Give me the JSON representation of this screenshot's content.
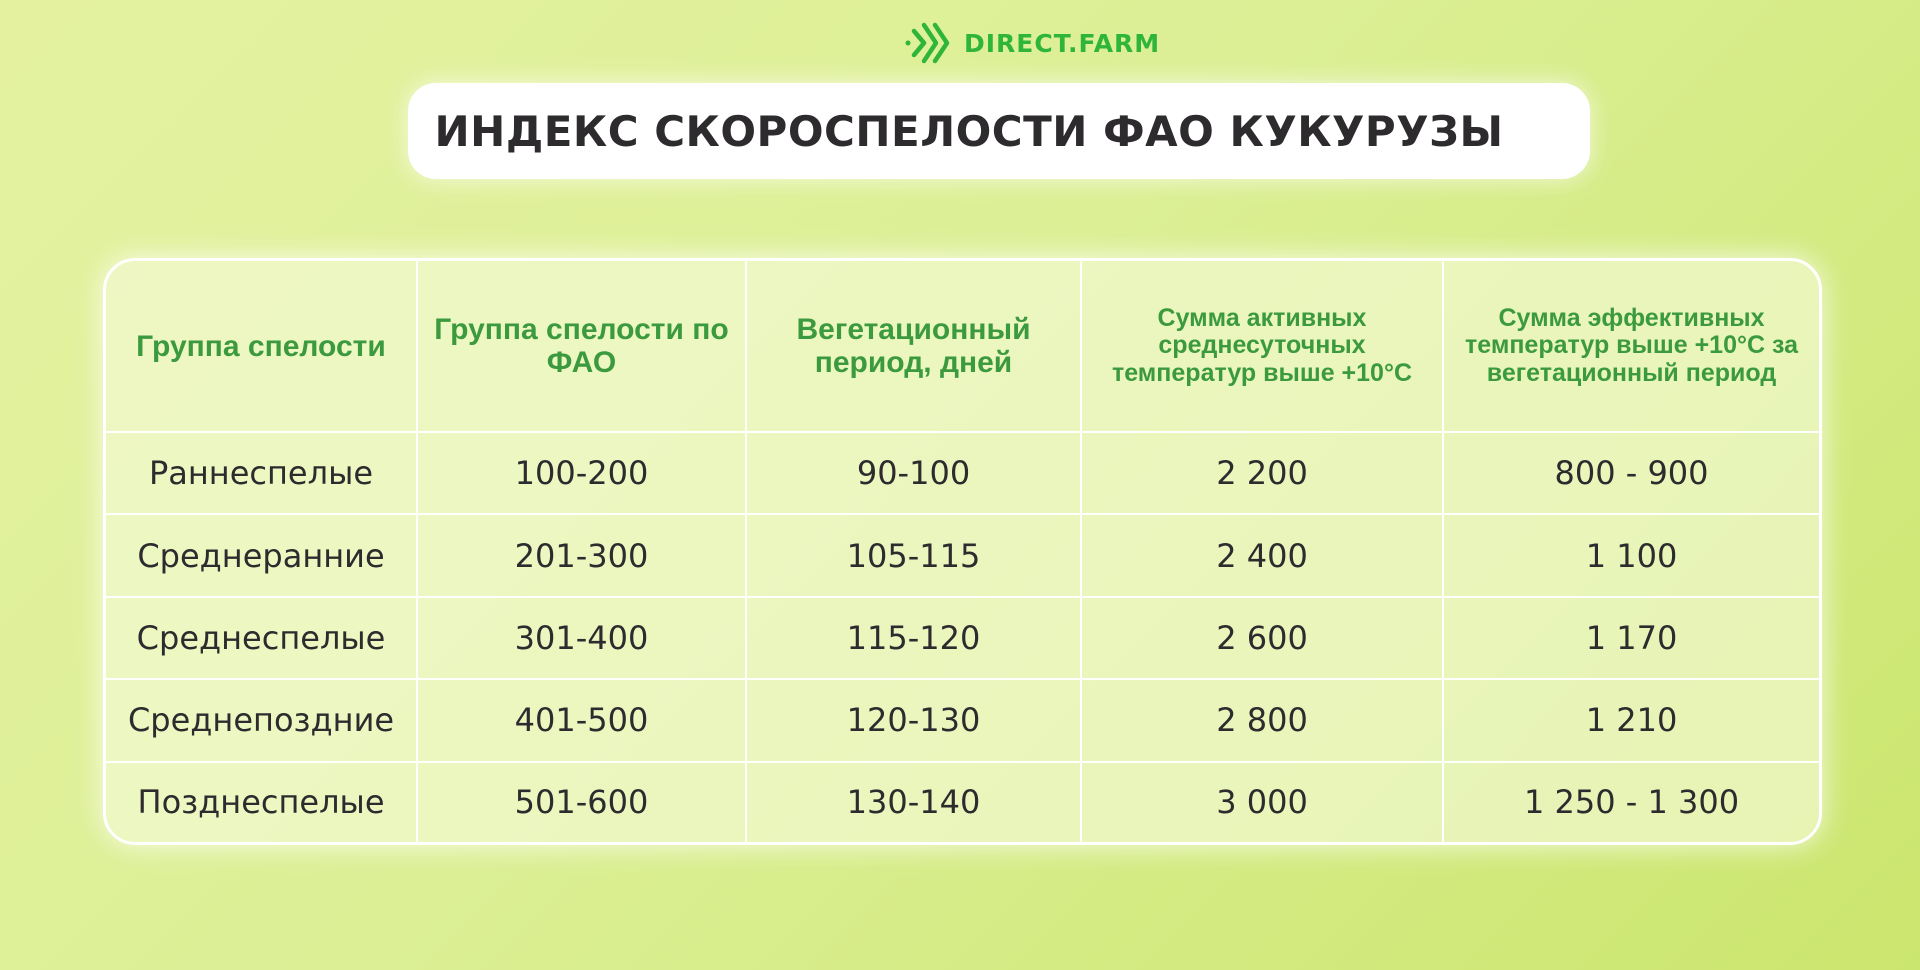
{
  "logo": {
    "text": "DIRECT.FARM",
    "color": "#2fb53a"
  },
  "title": "ИНДЕКС СКОРОСПЕЛОСТИ ФАО КУКУРУЗЫ",
  "table": {
    "headers": [
      "Группа спелости",
      "Группа спелости по ФАО",
      "Вегетационный период, дней",
      "Сумма активных среднесуточных температур выше +10°С",
      "Сумма эффективных температур выше +10°С за вегетационный период"
    ],
    "rows": [
      [
        "Раннеспелые",
        "100-200",
        "90-100",
        "2 200",
        "800 - 900"
      ],
      [
        "Среднеранние",
        "201-300",
        "105-115",
        "2 400",
        "1 100"
      ],
      [
        "Среднеспелые",
        "301-400",
        "115-120",
        "2 600",
        "1 170"
      ],
      [
        "Среднепоздние",
        "401-500",
        "120-130",
        "2 800",
        "1 210"
      ],
      [
        "Позднеспелые",
        "501-600",
        "130-140",
        "3 000",
        "1 250 - 1 300"
      ]
    ]
  },
  "colors": {
    "header_text": "#3c9a3e",
    "body_text": "#2d2b2e"
  }
}
